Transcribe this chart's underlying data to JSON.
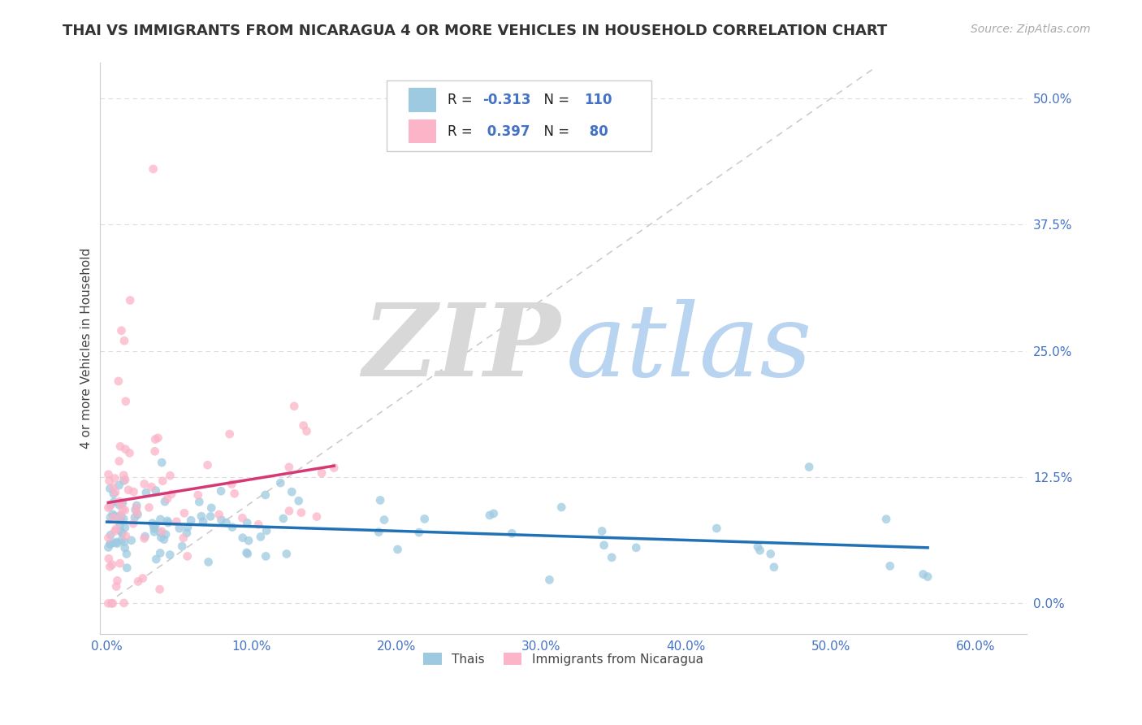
{
  "title": "THAI VS IMMIGRANTS FROM NICARAGUA 4 OR MORE VEHICLES IN HOUSEHOLD CORRELATION CHART",
  "source": "Source: ZipAtlas.com",
  "ylabel": "4 or more Vehicles in Household",
  "xlabel_ticks": [
    "0.0%",
    "10.0%",
    "20.0%",
    "30.0%",
    "40.0%",
    "50.0%",
    "60.0%"
  ],
  "xlabel_tick_vals": [
    0.0,
    0.1,
    0.2,
    0.3,
    0.4,
    0.5,
    0.6
  ],
  "ylabel_ticks": [
    "0.0%",
    "12.5%",
    "25.0%",
    "37.5%",
    "50.0%"
  ],
  "ylabel_tick_vals": [
    0.0,
    0.125,
    0.25,
    0.375,
    0.5
  ],
  "xlim": [
    -0.005,
    0.635
  ],
  "ylim": [
    -0.03,
    0.535
  ],
  "legend_label1": "Thais",
  "legend_label2": "Immigrants from Nicaragua",
  "R1": -0.313,
  "N1": 110,
  "R2": 0.397,
  "N2": 80,
  "color_blue": "#9ecae1",
  "color_pink": "#fbb4c8",
  "line_color_blue": "#2171b5",
  "line_color_pink": "#d63874",
  "diagonal_color": "#cccccc",
  "title_fontsize": 13,
  "label_fontsize": 11,
  "tick_fontsize": 11,
  "source_fontsize": 10
}
